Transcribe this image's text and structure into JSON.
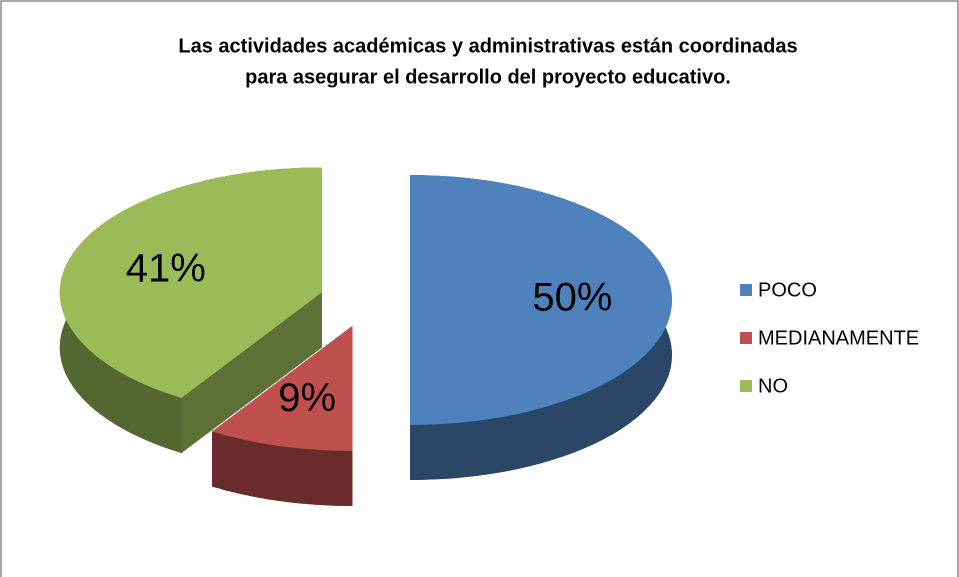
{
  "chart_data": {
    "type": "pie",
    "title": [
      "Las actividades académicas y administrativas  están coordinadas",
      "para asegurar el desarrollo del proyecto educativo."
    ],
    "categories": [
      "POCO",
      "MEDIANAMENTE",
      "NO"
    ],
    "values": [
      50,
      9,
      41
    ],
    "value_labels": [
      "50%",
      "9%",
      "41%"
    ],
    "colors": [
      "#4f81bd",
      "#c0504d",
      "#9bbb59"
    ],
    "legend": "right"
  }
}
